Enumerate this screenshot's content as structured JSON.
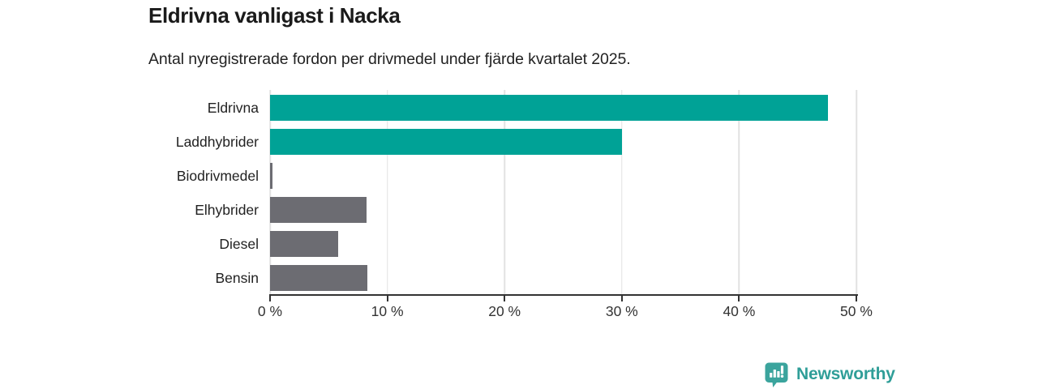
{
  "header": {
    "title": "Eldrivna vanligast i Nacka",
    "subtitle": "Antal nyregistrerade fordon per drivmedel under fjärde kvartalet 2025."
  },
  "chart_data": {
    "type": "bar",
    "orientation": "horizontal",
    "title": "Eldrivna vanligast i Nacka",
    "subtitle": "Antal nyregistrerade fordon per drivmedel under fjärde kvartalet 2025.",
    "categories": [
      "Eldrivna",
      "Laddhybrider",
      "Biodrivmedel",
      "Elhybrider",
      "Diesel",
      "Bensin"
    ],
    "values": [
      47.6,
      30.0,
      0.2,
      8.2,
      5.8,
      8.3
    ],
    "unit": "%",
    "bar_colors": [
      "#00a296",
      "#00a296",
      "#6c6c72",
      "#6c6c72",
      "#6c6c72",
      "#6c6c72"
    ],
    "xlim": [
      0,
      50
    ],
    "x_tick_values": [
      0,
      10,
      20,
      30,
      40,
      50
    ],
    "x_tick_labels": [
      "0 %",
      "10 %",
      "20 %",
      "30 %",
      "40 %",
      "50 %"
    ],
    "xlabel": "",
    "ylabel": "",
    "grid": true,
    "legend": false
  },
  "branding": {
    "logo_text": "Newsworthy",
    "logo_icon": "bar-chart-speech-bubble-icon"
  },
  "palette": {
    "teal": "#00a296",
    "gray": "#6c6c72",
    "axis": "#333333",
    "gridline": "#e2e2e2",
    "brand_text": "#2f9e98",
    "brand_fill": "#3ba49d"
  }
}
